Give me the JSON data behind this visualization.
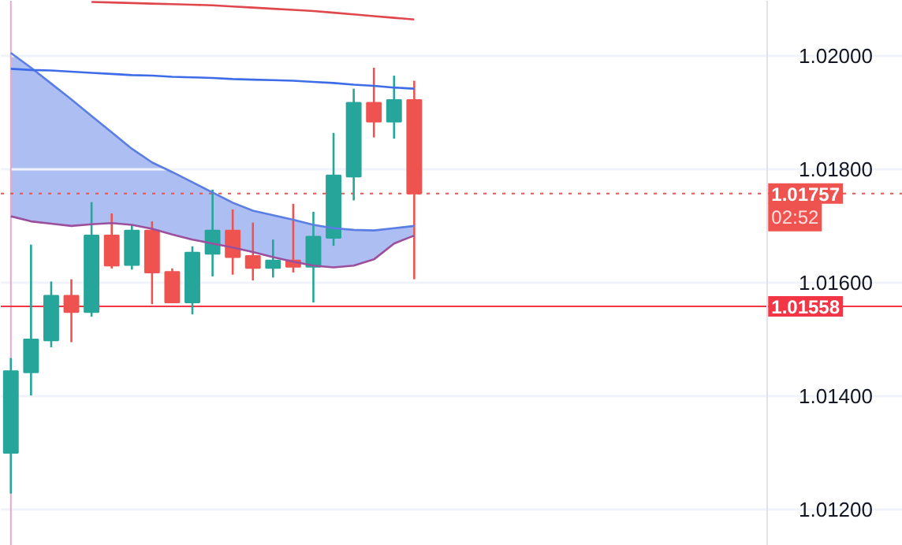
{
  "chart_data": {
    "type": "candlestick",
    "categories": [
      null,
      null,
      null,
      null,
      null,
      null,
      null,
      null,
      null,
      null,
      null,
      null,
      null,
      null,
      null,
      null,
      null,
      null,
      null,
      null,
      null,
      null,
      null,
      null,
      null,
      null,
      null,
      null,
      null,
      null,
      null,
      null,
      null,
      null,
      null,
      null,
      null,
      null
    ],
    "ohlc": [
      [
        1.013,
        1.01467,
        1.01228,
        1.01444
      ],
      [
        1.01442,
        1.01667,
        1.01401,
        1.015
      ],
      [
        1.01498,
        1.01602,
        1.01486,
        1.01577
      ],
      [
        1.01577,
        1.01606,
        1.01495,
        1.01548
      ],
      [
        1.01548,
        1.01742,
        1.0154,
        1.01683
      ],
      [
        1.01683,
        1.01722,
        1.01625,
        1.0163
      ],
      [
        1.01631,
        1.01701,
        1.01623,
        1.01692
      ],
      [
        1.01692,
        1.01708,
        1.01562,
        1.01618
      ],
      [
        1.01619,
        1.01625,
        1.01565,
        1.01565
      ],
      [
        1.01565,
        1.01664,
        1.01544,
        1.01653
      ],
      [
        1.01651,
        1.01764,
        1.01611,
        1.01692
      ],
      [
        1.01692,
        1.01729,
        1.01614,
        1.01645
      ],
      [
        1.01647,
        1.01706,
        1.01604,
        1.01626
      ],
      [
        1.01626,
        1.01676,
        1.01609,
        1.01639
      ],
      [
        1.01639,
        1.01739,
        1.01618,
        1.01628
      ],
      [
        1.01628,
        1.01725,
        1.01565,
        1.01681
      ],
      [
        1.01679,
        1.01864,
        1.01665,
        1.01789
      ],
      [
        1.01787,
        1.01942,
        1.01745,
        1.01917
      ],
      [
        1.01917,
        1.01979,
        1.01856,
        1.01884
      ],
      [
        1.01884,
        1.01965,
        1.01854,
        1.01922
      ],
      [
        1.01922,
        1.01956,
        1.01606,
        1.01757
      ],
      null,
      null,
      null,
      null,
      null,
      null,
      null,
      null,
      null,
      null,
      null,
      null,
      null,
      null,
      null,
      null,
      null
    ],
    "colors": [
      "#26a69a",
      "#26a69a",
      "#26a69a",
      "#ef5350",
      "#26a69a",
      "#ef5350",
      "#26a69a",
      "#ef5350",
      "#ef5350",
      "#26a69a",
      "#26a69a",
      "#ef5350",
      "#ef5350",
      "#26a69a",
      "#ef5350",
      "#26a69a",
      "#26a69a",
      "#26a69a",
      "#ef5350",
      "#26a69a",
      "#ef5350",
      null,
      null,
      null,
      null,
      null,
      null,
      null,
      null,
      null,
      null,
      null,
      null,
      null,
      null,
      null,
      null,
      null
    ],
    "series": [
      {
        "type": "line",
        "color": "#5b7ee5",
        "values": [
          1.02005,
          1.01979,
          1.01951,
          1.01923,
          1.01894,
          1.01865,
          1.01836,
          1.01812,
          1.01795,
          1.01777,
          1.01759,
          1.01741,
          1.01727,
          1.01719,
          1.01711,
          1.01702,
          1.01696,
          1.01693,
          1.01692,
          1.01696,
          1.017,
          null,
          null,
          null,
          null,
          null,
          null,
          null,
          null,
          null,
          null,
          null,
          null,
          null,
          null,
          null,
          null,
          null
        ],
        "lower": [
          1.01717,
          1.01708,
          1.01704,
          1.017,
          1.01703,
          1.01705,
          1.01702,
          1.01695,
          1.01685,
          1.01676,
          1.01669,
          1.01662,
          1.01654,
          1.01645,
          1.01637,
          1.0163,
          1.01627,
          1.0163,
          1.01641,
          1.01669,
          1.01683,
          null,
          null,
          null,
          null,
          null,
          null,
          null,
          null,
          null,
          null,
          null,
          null,
          null,
          null,
          null,
          null,
          null
        ],
        "upper": [
          1.02005,
          1.01979,
          1.01951,
          1.01923,
          1.01894,
          1.01865,
          1.01836,
          1.01812,
          1.01795,
          1.01777,
          1.01759,
          1.01741,
          1.01727,
          1.01719,
          1.01711,
          1.01702,
          1.01696,
          1.01693,
          1.01692,
          1.01696,
          1.017,
          null,
          null,
          null,
          null,
          null,
          null,
          null,
          null,
          null,
          null,
          null,
          null,
          null,
          null,
          null,
          null,
          null
        ]
      },
      {
        "type": "line",
        "color": "#9c4f9c",
        "values": [
          1.01717,
          1.01708,
          1.01704,
          1.017,
          1.01703,
          1.01705,
          1.01702,
          1.01695,
          1.01685,
          1.01676,
          1.01669,
          1.01662,
          1.01654,
          1.01645,
          1.01637,
          1.0163,
          1.01627,
          1.0163,
          1.01641,
          1.01669,
          1.01683,
          null,
          null,
          null,
          null,
          null,
          null,
          null,
          null,
          null,
          null,
          null,
          null,
          null,
          null,
          null,
          null,
          null
        ]
      },
      {
        "type": "line",
        "color": "#3d6ce8",
        "values": [
          1.01977,
          1.01975,
          1.01974,
          1.01972,
          1.0197,
          1.01968,
          1.01966,
          1.01965,
          1.01963,
          1.01962,
          1.01961,
          1.01959,
          1.01958,
          1.01957,
          1.01956,
          1.01954,
          1.01952,
          1.01949,
          1.01947,
          1.01944,
          1.01942,
          null,
          null,
          null,
          null,
          null,
          null,
          null,
          null,
          null,
          null,
          null,
          null,
          null,
          null,
          null,
          null,
          null
        ]
      },
      {
        "type": "line",
        "color": "#e0474c",
        "values": [
          null,
          null,
          null,
          null,
          1.02095,
          1.02094,
          1.02093,
          1.02092,
          1.02091,
          1.0209,
          1.02089,
          1.02087,
          1.02085,
          1.02083,
          1.02081,
          1.02079,
          1.02076,
          1.02073,
          1.0207,
          1.02067,
          1.02064,
          null,
          null,
          null,
          null,
          null,
          null,
          null,
          null,
          null,
          null,
          null,
          null,
          null,
          null,
          null,
          null,
          null
        ]
      }
    ],
    "ylim": [
      1.01136,
      1.02097
    ],
    "yticks": [
      {
        "value": 1.012,
        "label": "1.01200"
      },
      {
        "value": 1.014,
        "label": "1.01400"
      },
      {
        "value": 1.016,
        "label": "1.01600"
      },
      {
        "value": 1.018,
        "label": "1.01800"
      },
      {
        "value": 1.02,
        "label": "1.02000"
      }
    ],
    "tick_labels": "y",
    "grid": "y",
    "ref_lines": [
      {
        "axis": "y",
        "value": 1.01757,
        "label": "1.01757",
        "color": "#ef5350",
        "line_style": "dotted"
      },
      {
        "axis": "y",
        "value": 1.01558,
        "label": "1.01558",
        "color": "#f23645",
        "line_style": "solid"
      }
    ],
    "annotations": [
      "02:52"
    ]
  }
}
